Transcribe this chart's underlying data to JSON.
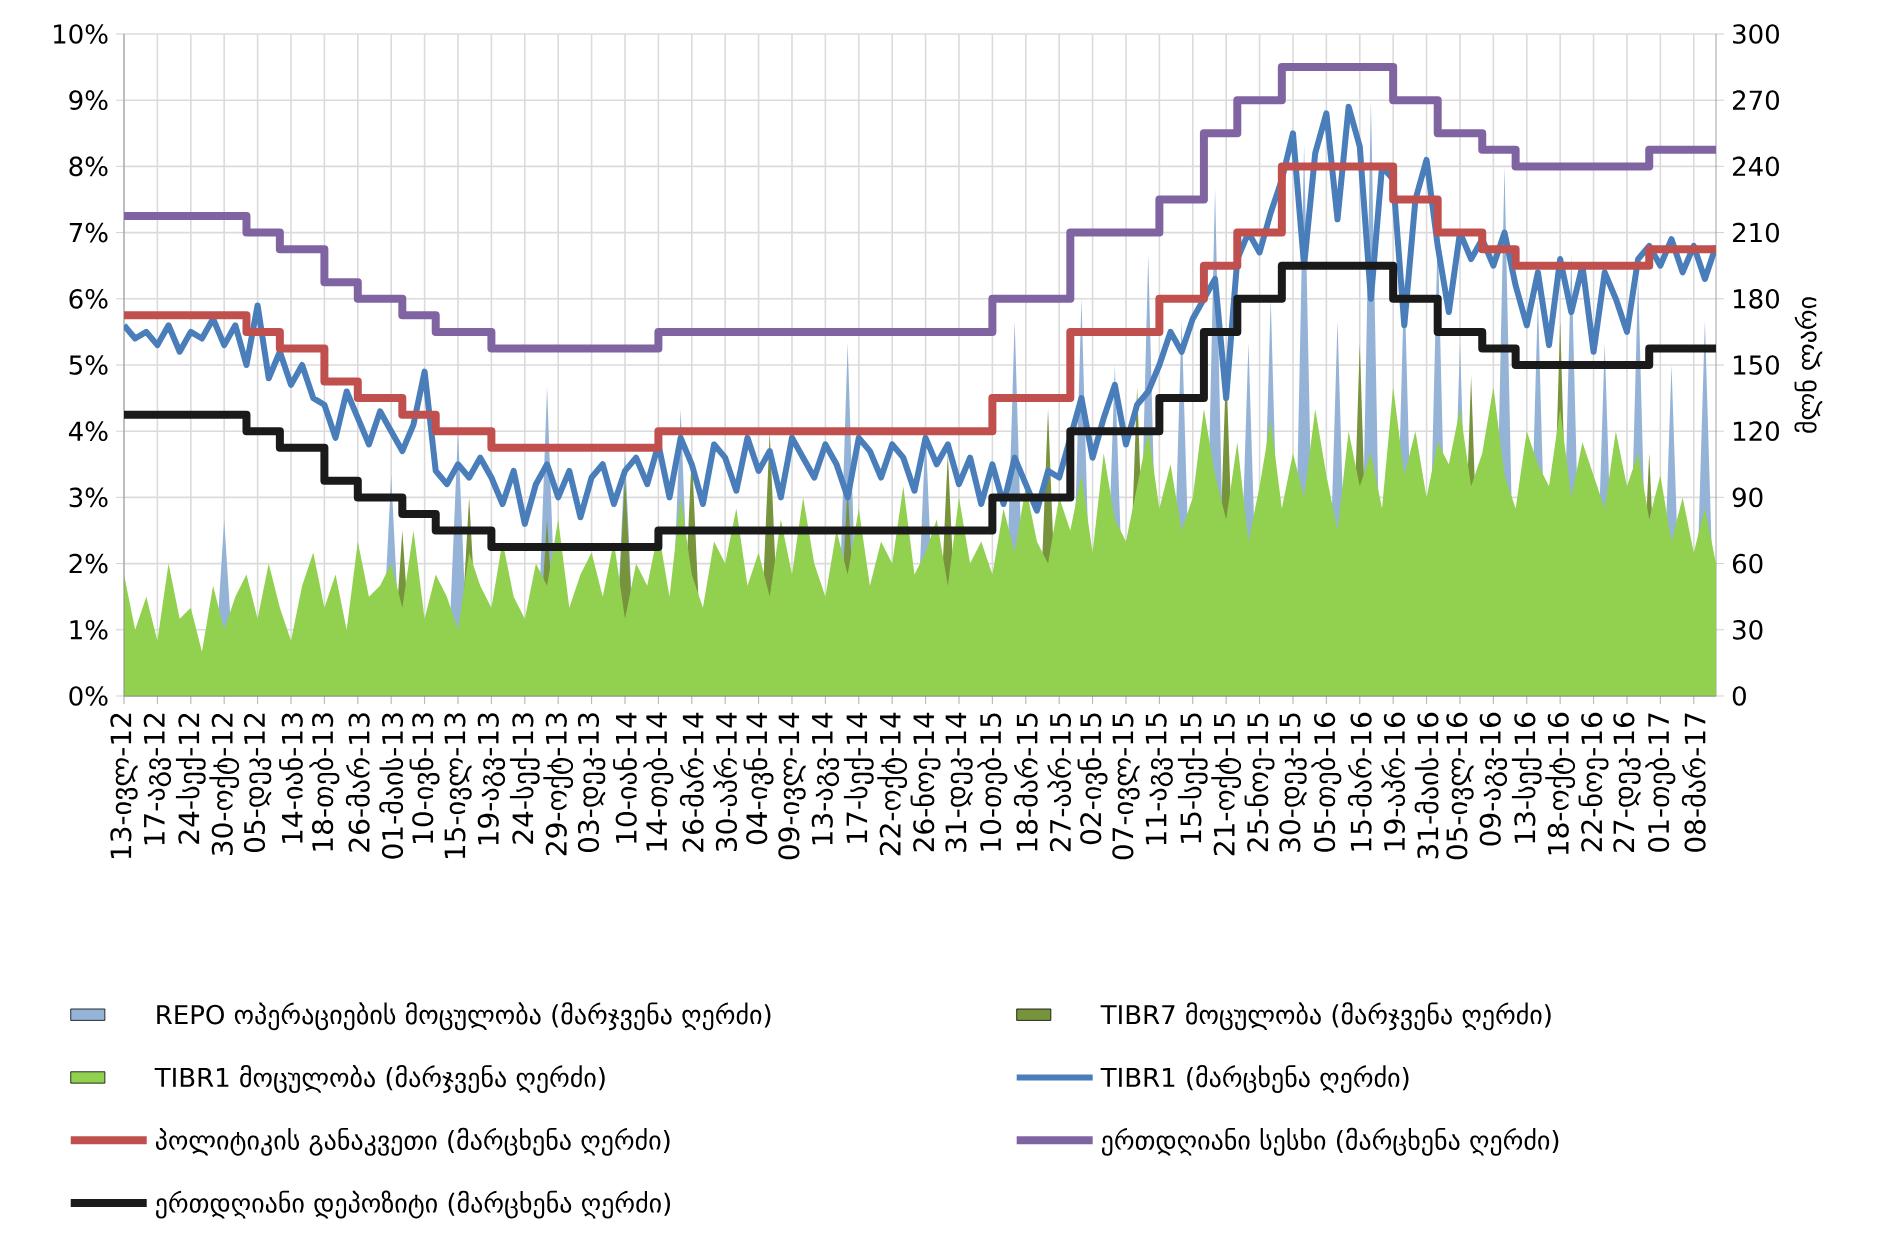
{
  "chart_data": {
    "type": "line",
    "categories": [
      "13-ივლ-12",
      null,
      null,
      "17-აგვ-12",
      null,
      null,
      "24-სექ-12",
      null,
      null,
      "30-ოქტ-12",
      null,
      null,
      "05-დეკ-12",
      null,
      null,
      "14-იან-13",
      null,
      null,
      "18-თებ-13",
      null,
      null,
      "26-მარ-13",
      null,
      null,
      "01-მაის-13",
      null,
      null,
      "10-ივნ-13",
      null,
      null,
      "15-ივლ-13",
      null,
      null,
      "19-აგვ-13",
      null,
      null,
      "24-სექ-13",
      null,
      null,
      "29-ოქტ-13",
      null,
      null,
      "03-დეკ-13",
      null,
      null,
      "10-იან-14",
      null,
      null,
      "14-თებ-14",
      null,
      null,
      "26-მარ-14",
      null,
      null,
      "30-აპრ-14",
      null,
      null,
      "04-ივნ-14",
      null,
      null,
      "09-ივლ-14",
      null,
      null,
      "13-აგვ-14",
      null,
      null,
      "17-სექ-14",
      null,
      null,
      "22-ოქტ-14",
      null,
      null,
      "26-ნოე-14",
      null,
      null,
      "31-დეკ-14",
      null,
      null,
      "10-თებ-15",
      null,
      null,
      "18-მარ-15",
      null,
      null,
      "27-აპრ-15",
      null,
      null,
      "02-ივნ-15",
      null,
      null,
      "07-ივლ-15",
      null,
      null,
      "11-აგვ-15",
      null,
      null,
      "15-სექ-15",
      null,
      null,
      "21-ოქტ-15",
      null,
      null,
      "25-ნოე-15",
      null,
      null,
      "30-დეკ-15",
      null,
      null,
      "05-თებ-16",
      null,
      null,
      "15-მარ-16",
      null,
      null,
      "19-აპრ-16",
      null,
      null,
      "31-მაის-16",
      null,
      null,
      "05-ივლ-16",
      null,
      null,
      "09-აგვ-16",
      null,
      null,
      "13-სექ-16",
      null,
      null,
      "18-ოქტ-16",
      null,
      null,
      "22-ნოე-16",
      null,
      null,
      "27-დეკ-16",
      null,
      null,
      "01-თებ-17",
      null,
      null,
      "08-მარ-17",
      null,
      null
    ],
    "y2label": "მლნ ლარი",
    "ylim": [
      0,
      10
    ],
    "yticks": [
      {
        "value": 0,
        "label": "0%"
      },
      {
        "value": 1,
        "label": "1%"
      },
      {
        "value": 2,
        "label": "2%"
      },
      {
        "value": 3,
        "label": "3%"
      },
      {
        "value": 4,
        "label": "4%"
      },
      {
        "value": 5,
        "label": "5%"
      },
      {
        "value": 6,
        "label": "6%"
      },
      {
        "value": 7,
        "label": "7%"
      },
      {
        "value": 8,
        "label": "8%"
      },
      {
        "value": 9,
        "label": "9%"
      },
      {
        "value": 10,
        "label": "10%"
      }
    ],
    "y2lim": [
      0,
      300
    ],
    "y2ticks": [
      0,
      30,
      60,
      90,
      120,
      150,
      180,
      210,
      240,
      270,
      300
    ],
    "grid": true,
    "legend": "bottom",
    "series": [
      {
        "name": "REPO ოპერაციების მოცულობა (მარჯვენა ღერძი)",
        "type": "area",
        "axis": "y2",
        "color": "#95b3d7",
        "values": [
          0,
          0,
          0,
          0,
          0,
          0,
          0,
          0,
          0,
          80,
          0,
          0,
          0,
          0,
          0,
          0,
          0,
          0,
          0,
          0,
          0,
          0,
          0,
          0,
          100,
          0,
          0,
          0,
          0,
          0,
          120,
          0,
          0,
          0,
          0,
          0,
          0,
          0,
          140,
          0,
          0,
          0,
          0,
          0,
          0,
          110,
          0,
          0,
          0,
          0,
          130,
          0,
          0,
          0,
          0,
          0,
          0,
          0,
          110,
          0,
          0,
          0,
          0,
          0,
          0,
          160,
          0,
          0,
          0,
          0,
          0,
          0,
          120,
          0,
          0,
          0,
          0,
          0,
          0,
          0,
          170,
          0,
          0,
          0,
          0,
          0,
          180,
          0,
          0,
          150,
          0,
          0,
          200,
          0,
          0,
          170,
          0,
          0,
          230,
          0,
          0,
          160,
          0,
          180,
          0,
          0,
          250,
          0,
          0,
          170,
          0,
          0,
          270,
          0,
          0,
          190,
          0,
          0,
          210,
          0,
          160,
          0,
          0,
          0,
          240,
          0,
          0,
          180,
          0,
          0,
          200,
          0,
          0,
          160,
          0,
          0,
          190,
          0,
          0,
          150,
          0,
          0,
          170,
          0
        ]
      },
      {
        "name": "TIBR7 მოცულობა (მარჯვენა ღერძი)",
        "type": "area",
        "axis": "y2",
        "color": "#77933c",
        "values": [
          0,
          0,
          0,
          0,
          0,
          0,
          0,
          0,
          0,
          0,
          0,
          0,
          0,
          0,
          0,
          0,
          0,
          0,
          0,
          0,
          0,
          0,
          0,
          0,
          0,
          75,
          0,
          0,
          0,
          0,
          0,
          90,
          0,
          0,
          0,
          0,
          0,
          0,
          80,
          0,
          0,
          0,
          0,
          0,
          0,
          100,
          0,
          0,
          0,
          0,
          0,
          110,
          0,
          0,
          0,
          0,
          0,
          0,
          120,
          0,
          0,
          0,
          0,
          0,
          0,
          95,
          0,
          0,
          0,
          0,
          0,
          0,
          0,
          0,
          110,
          0,
          0,
          0,
          0,
          0,
          0,
          0,
          0,
          130,
          0,
          0,
          0,
          0,
          0,
          0,
          0,
          140,
          0,
          0,
          0,
          0,
          0,
          0,
          0,
          150,
          0,
          0,
          0,
          0,
          0,
          0,
          0,
          0,
          0,
          0,
          0,
          160,
          0,
          0,
          0,
          0,
          0,
          0,
          0,
          0,
          0,
          145,
          0,
          0,
          0,
          0,
          0,
          0,
          0,
          170,
          0,
          0,
          0,
          0,
          0,
          0,
          0,
          110,
          0,
          0,
          0,
          0,
          0,
          0
        ]
      },
      {
        "name": "TIBR1 მოცულობა (მარჯვენა ღერძი)",
        "type": "area",
        "axis": "y2",
        "color": "#92d050",
        "values": [
          55,
          30,
          45,
          25,
          60,
          35,
          40,
          20,
          50,
          30,
          45,
          55,
          35,
          60,
          40,
          25,
          50,
          65,
          40,
          55,
          30,
          70,
          45,
          50,
          60,
          40,
          75,
          35,
          55,
          45,
          30,
          65,
          50,
          40,
          70,
          45,
          35,
          60,
          50,
          80,
          40,
          55,
          65,
          45,
          70,
          35,
          60,
          50,
          75,
          45,
          90,
          55,
          40,
          70,
          60,
          85,
          50,
          65,
          45,
          80,
          55,
          90,
          60,
          45,
          75,
          55,
          85,
          50,
          70,
          60,
          95,
          55,
          65,
          80,
          50,
          90,
          60,
          70,
          55,
          85,
          65,
          95,
          70,
          60,
          90,
          75,
          100,
          65,
          110,
          80,
          70,
          95,
          120,
          85,
          105,
          75,
          90,
          130,
          100,
          80,
          115,
          70,
          95,
          125,
          85,
          110,
          90,
          130,
          100,
          75,
          120,
          95,
          110,
          85,
          140,
          100,
          120,
          90,
          115,
          105,
          130,
          95,
          110,
          140,
          100,
          85,
          120,
          105,
          95,
          130,
          90,
          115,
          100,
          85,
          120,
          95,
          110,
          80,
          100,
          70,
          90,
          65,
          85,
          60
        ]
      },
      {
        "name": "TIBR1 (მარცხენა ღერძი)",
        "color": "#4a7ebb",
        "values": [
          5.6,
          5.4,
          5.5,
          5.3,
          5.6,
          5.2,
          5.5,
          5.4,
          5.7,
          5.3,
          5.6,
          5.0,
          5.9,
          4.8,
          5.2,
          4.7,
          5.0,
          4.5,
          4.4,
          3.9,
          4.6,
          4.2,
          3.8,
          4.3,
          4.0,
          3.7,
          4.1,
          4.9,
          3.4,
          3.2,
          3.5,
          3.3,
          3.6,
          3.3,
          2.9,
          3.4,
          2.6,
          3.2,
          3.5,
          3.0,
          3.4,
          2.7,
          3.3,
          3.5,
          2.9,
          3.4,
          3.6,
          3.2,
          3.8,
          3.0,
          3.9,
          3.5,
          2.9,
          3.8,
          3.6,
          3.1,
          3.9,
          3.4,
          3.7,
          3.0,
          3.9,
          3.6,
          3.3,
          3.8,
          3.5,
          3.0,
          3.9,
          3.7,
          3.3,
          3.8,
          3.6,
          3.1,
          3.9,
          3.5,
          3.8,
          3.2,
          3.6,
          2.9,
          3.5,
          2.9,
          3.6,
          3.2,
          2.8,
          3.4,
          3.3,
          3.9,
          4.5,
          3.6,
          4.2,
          4.7,
          3.8,
          4.4,
          4.6,
          5.0,
          5.5,
          5.2,
          5.7,
          6.0,
          6.3,
          4.5,
          6.6,
          7.0,
          6.7,
          7.3,
          7.8,
          8.5,
          6.5,
          8.2,
          8.8,
          7.2,
          8.9,
          8.3,
          6.0,
          8.0,
          7.8,
          5.6,
          7.5,
          8.1,
          6.8,
          5.8,
          7.0,
          6.6,
          6.9,
          6.5,
          7.0,
          6.2,
          5.6,
          6.4,
          5.3,
          6.6,
          5.8,
          6.5,
          5.2,
          6.4,
          6.0,
          5.5,
          6.6,
          6.8,
          6.5,
          6.9,
          6.4,
          6.8,
          6.3,
          6.8
        ]
      },
      {
        "name": "პოლიტიკის განაკვეთი (მარცხენა ღერძი)",
        "type": "step",
        "color": "#c0504d",
        "values": [
          5.75,
          5.75,
          5.75,
          5.75,
          5.75,
          5.75,
          5.75,
          5.75,
          5.75,
          5.75,
          5.75,
          5.5,
          5.5,
          5.5,
          5.25,
          5.25,
          5.25,
          5.25,
          4.75,
          4.75,
          4.75,
          4.5,
          4.5,
          4.5,
          4.5,
          4.25,
          4.25,
          4.25,
          4,
          4,
          4,
          4,
          4,
          3.75,
          3.75,
          3.75,
          3.75,
          3.75,
          3.75,
          3.75,
          3.75,
          3.75,
          3.75,
          3.75,
          3.75,
          3.75,
          3.75,
          3.75,
          4,
          4,
          4,
          4,
          4,
          4,
          4,
          4,
          4,
          4,
          4,
          4,
          4,
          4,
          4,
          4,
          4,
          4,
          4,
          4,
          4,
          4,
          4,
          4,
          4,
          4,
          4,
          4,
          4,
          4,
          4.5,
          4.5,
          4.5,
          4.5,
          4.5,
          4.5,
          4.5,
          5.5,
          5.5,
          5.5,
          5.5,
          5.5,
          5.5,
          5.5,
          5.5,
          6,
          6,
          6,
          6,
          6.5,
          6.5,
          6.5,
          7,
          7,
          7,
          7,
          8,
          8,
          8,
          8,
          8,
          8,
          8,
          8,
          8,
          8,
          7.5,
          7.5,
          7.5,
          7.5,
          7,
          7,
          7,
          7,
          6.75,
          6.75,
          6.75,
          6.5,
          6.5,
          6.5,
          6.5,
          6.5,
          6.5,
          6.5,
          6.5,
          6.5,
          6.5,
          6.5,
          6.5,
          6.75,
          6.75,
          6.75,
          6.75,
          6.75,
          6.75,
          6.75
        ]
      },
      {
        "name": "ერთდღიანი სესხი (მარცხენა ღერძი)",
        "type": "step",
        "color": "#8064a2",
        "values": [
          7.25,
          7.25,
          7.25,
          7.25,
          7.25,
          7.25,
          7.25,
          7.25,
          7.25,
          7.25,
          7.25,
          7,
          7,
          7,
          6.75,
          6.75,
          6.75,
          6.75,
          6.25,
          6.25,
          6.25,
          6,
          6,
          6,
          6,
          5.75,
          5.75,
          5.75,
          5.5,
          5.5,
          5.5,
          5.5,
          5.5,
          5.25,
          5.25,
          5.25,
          5.25,
          5.25,
          5.25,
          5.25,
          5.25,
          5.25,
          5.25,
          5.25,
          5.25,
          5.25,
          5.25,
          5.25,
          5.5,
          5.5,
          5.5,
          5.5,
          5.5,
          5.5,
          5.5,
          5.5,
          5.5,
          5.5,
          5.5,
          5.5,
          5.5,
          5.5,
          5.5,
          5.5,
          5.5,
          5.5,
          5.5,
          5.5,
          5.5,
          5.5,
          5.5,
          5.5,
          5.5,
          5.5,
          5.5,
          5.5,
          5.5,
          5.5,
          6,
          6,
          6,
          6,
          6,
          6,
          6,
          7,
          7,
          7,
          7,
          7,
          7,
          7,
          7,
          7.5,
          7.5,
          7.5,
          7.5,
          8.5,
          8.5,
          8.5,
          9,
          9,
          9,
          9,
          9.5,
          9.5,
          9.5,
          9.5,
          9.5,
          9.5,
          9.5,
          9.5,
          9.5,
          9.5,
          9,
          9,
          9,
          9,
          8.5,
          8.5,
          8.5,
          8.5,
          8.25,
          8.25,
          8.25,
          8,
          8,
          8,
          8,
          8,
          8,
          8,
          8,
          8,
          8,
          8,
          8,
          8.25,
          8.25,
          8.25,
          8.25,
          8.25,
          8.25,
          8.25
        ]
      },
      {
        "name": "ერთდღიანი დეპოზიტი (მარცხენა ღერძი)",
        "type": "step",
        "color": "#1a1a1a",
        "values": [
          4.25,
          4.25,
          4.25,
          4.25,
          4.25,
          4.25,
          4.25,
          4.25,
          4.25,
          4.25,
          4.25,
          4,
          4,
          4,
          3.75,
          3.75,
          3.75,
          3.75,
          3.25,
          3.25,
          3.25,
          3,
          3,
          3,
          3,
          2.75,
          2.75,
          2.75,
          2.5,
          2.5,
          2.5,
          2.5,
          2.5,
          2.25,
          2.25,
          2.25,
          2.25,
          2.25,
          2.25,
          2.25,
          2.25,
          2.25,
          2.25,
          2.25,
          2.25,
          2.25,
          2.25,
          2.25,
          2.5,
          2.5,
          2.5,
          2.5,
          2.5,
          2.5,
          2.5,
          2.5,
          2.5,
          2.5,
          2.5,
          2.5,
          2.5,
          2.5,
          2.5,
          2.5,
          2.5,
          2.5,
          2.5,
          2.5,
          2.5,
          2.5,
          2.5,
          2.5,
          2.5,
          2.5,
          2.5,
          2.5,
          2.5,
          2.5,
          3,
          3,
          3,
          3,
          3,
          3,
          3,
          4,
          4,
          4,
          4,
          4,
          4,
          4,
          4,
          4.5,
          4.5,
          4.5,
          4.5,
          5.5,
          5.5,
          5.5,
          6,
          6,
          6,
          6,
          6.5,
          6.5,
          6.5,
          6.5,
          6.5,
          6.5,
          6.5,
          6.5,
          6.5,
          6.5,
          6,
          6,
          6,
          6,
          5.5,
          5.5,
          5.5,
          5.5,
          5.25,
          5.25,
          5.25,
          5,
          5,
          5,
          5,
          5,
          5,
          5,
          5,
          5,
          5,
          5,
          5,
          5.25,
          5.25,
          5.25,
          5.25,
          5.25,
          5.25,
          5.25
        ]
      }
    ]
  }
}
